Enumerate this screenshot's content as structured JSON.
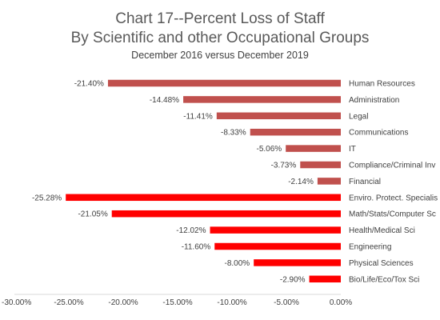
{
  "chart_data": {
    "type": "bar",
    "orientation": "horizontal",
    "title": [
      "Chart 17--Percent Loss of Staff",
      "By Scientific and other Occupational Groups"
    ],
    "subtitle": "December 2016 versus December 2019",
    "xlabel": "",
    "ylabel": "",
    "xlim": [
      -30,
      0
    ],
    "x_tick_step": 5,
    "x_tick_labels": [
      "-30.00%",
      "-25.00%",
      "-20.00%",
      "-15.00%",
      "-10.00%",
      "-5.00%",
      "0.00%"
    ],
    "grid": false,
    "legend": "none",
    "categories": [
      "Human Resources",
      "Administration",
      "Legal",
      "Communications",
      "IT",
      "Compliance/Criminal Inv",
      "Financial",
      "Enviro. Protect. Specialis",
      "Math/Stats/Computer Sc",
      "Health/Medical Sci",
      "Engineering",
      "Physical Sciences",
      "Bio/Life/Eco/Tox Sci"
    ],
    "values": [
      -21.4,
      -14.48,
      -11.41,
      -8.33,
      -5.06,
      -3.73,
      -2.14,
      -25.28,
      -21.05,
      -12.02,
      -11.6,
      -8.0,
      -2.9
    ],
    "data_labels": [
      "-21.40%",
      "-14.48%",
      "-11.41%",
      "-8.33%",
      "-5.06%",
      "-3.73%",
      "-2.14%",
      "-25.28%",
      "-21.05%",
      "-12.02%",
      "-11.60%",
      "-8.00%",
      "-2.90%"
    ],
    "groups": [
      "other",
      "other",
      "other",
      "other",
      "other",
      "other",
      "other",
      "scientific",
      "scientific",
      "scientific",
      "scientific",
      "scientific",
      "scientific"
    ],
    "colors": {
      "other": "#c0504d",
      "scientific": "#ff0000",
      "axis": "#d9d9d9",
      "text": "#595959"
    }
  }
}
